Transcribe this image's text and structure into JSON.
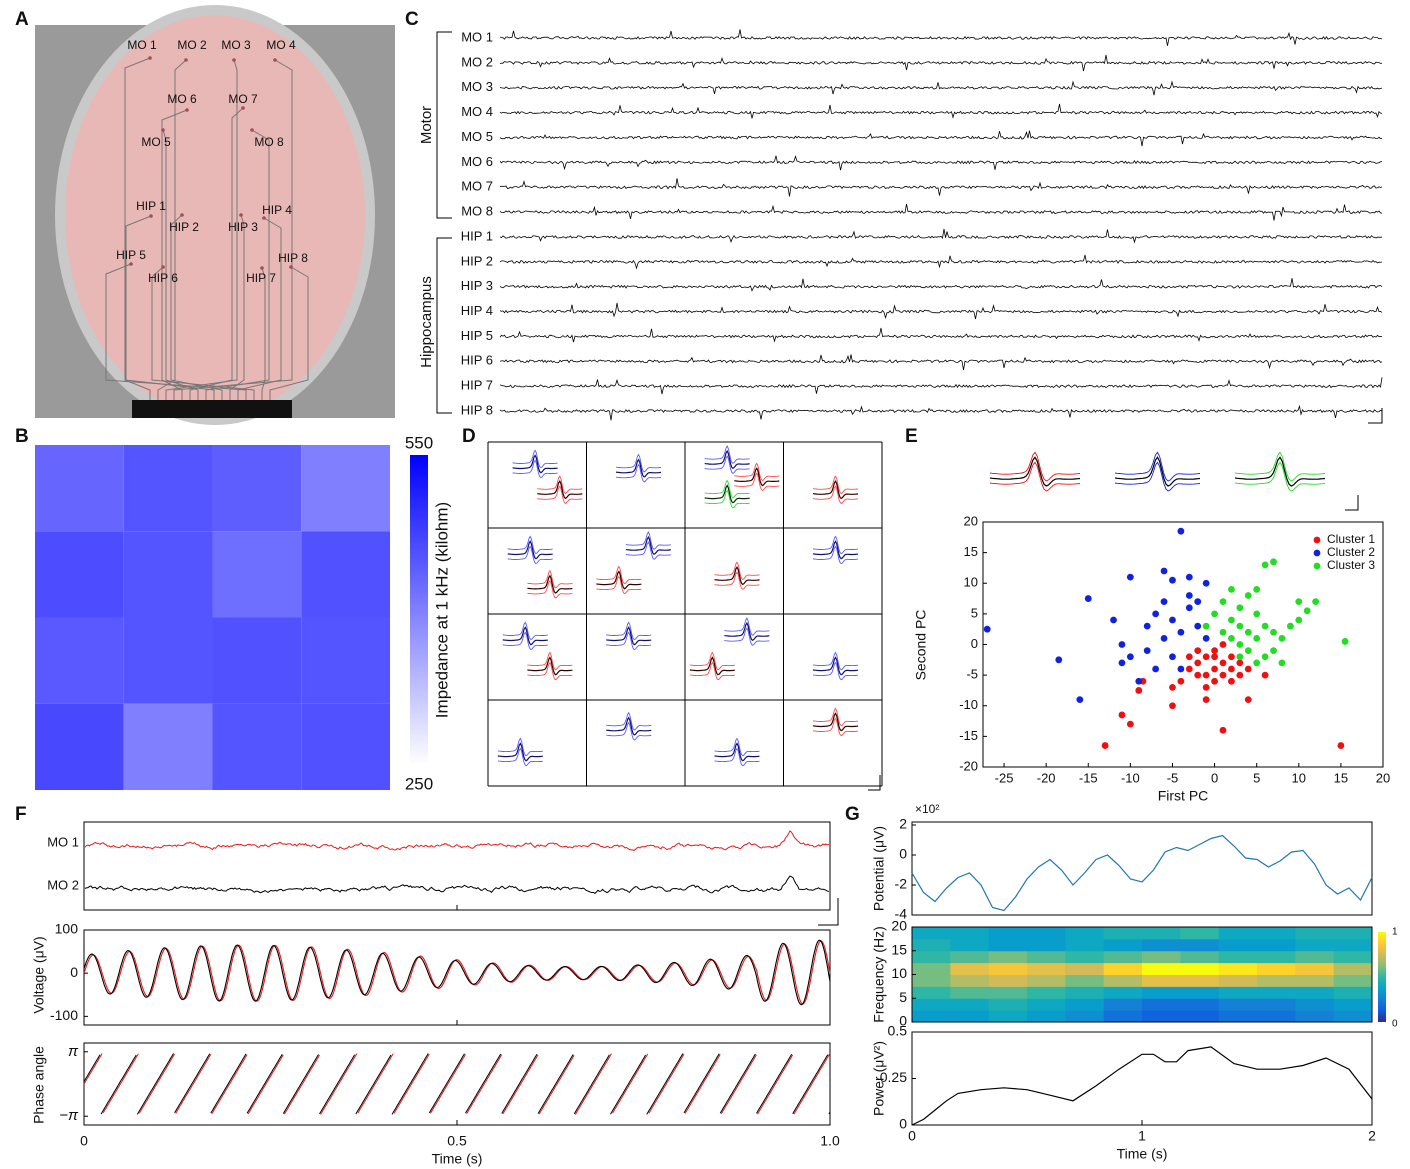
{
  "panel_labels": [
    "A",
    "B",
    "C",
    "D",
    "E",
    "F",
    "G"
  ],
  "electrodes": [
    "MO 1",
    "MO 2",
    "MO 3",
    "MO 4",
    "MO 6",
    "MO 7",
    "MO 5",
    "MO 8",
    "HIP 1",
    "HIP 2",
    "HIP 3",
    "HIP 4",
    "HIP 5",
    "HIP 6",
    "HIP 7",
    "HIP 8"
  ],
  "recordings": {
    "groups": [
      "Motor",
      "Hippocampus"
    ],
    "channels": [
      "MO 1",
      "MO 2",
      "MO 3",
      "MO 4",
      "MO 5",
      "MO 6",
      "MO 7",
      "MO 8",
      "HIP 1",
      "HIP 2",
      "HIP 3",
      "HIP 4",
      "HIP 5",
      "HIP 6",
      "HIP 7",
      "HIP 8"
    ]
  },
  "chart_data": [
    {
      "type": "heatmap",
      "values": [
        [
          430,
          450,
          440,
          400
        ],
        [
          460,
          450,
          420,
          455
        ],
        [
          445,
          450,
          455,
          450
        ],
        [
          465,
          400,
          450,
          455
        ]
      ],
      "zlim": [
        250,
        550
      ],
      "zticks": [
        250,
        550
      ],
      "colors": [
        "#ffffff",
        "#0000ff"
      ],
      "colorbar_label": "Impedance at 1 kHz (kilohm)"
    },
    {
      "type": "scatter",
      "xlabel": "First PC",
      "ylabel": "Second PC",
      "xlim": [
        -27.5,
        20
      ],
      "ylim": [
        -20,
        20
      ],
      "xticks": [
        -25,
        -20,
        -15,
        -10,
        -5,
        0,
        5,
        10,
        15,
        20
      ],
      "yticks": [
        -20,
        -15,
        -10,
        -5,
        0,
        5,
        10,
        15,
        20
      ],
      "series": [
        {
          "name": "Cluster 1",
          "color": "#ee1111",
          "x": [
            -13,
            15,
            -10,
            -11,
            1,
            -5,
            -8.5,
            -9,
            -5,
            -1,
            4,
            6,
            0,
            -1,
            1,
            2,
            -2,
            0,
            1,
            -1,
            -3,
            -2,
            3,
            2,
            -4,
            0,
            1,
            -3,
            2,
            -1,
            3,
            4,
            -2,
            0
          ],
          "values": [
            -16.5,
            -16.5,
            -13,
            -11.5,
            -14,
            -10,
            -6,
            -7.5,
            -7,
            -9,
            -9,
            -5,
            -1,
            -2,
            -3,
            -2,
            -3,
            -4,
            -5,
            -5,
            -4,
            -1,
            -3,
            -6,
            -6,
            -2,
            0,
            -2,
            -4,
            -7,
            -5,
            -4,
            -5,
            -6
          ]
        },
        {
          "name": "Cluster 2",
          "color": "#1122dd",
          "x": [
            -27,
            -18.5,
            -16,
            -15,
            -4,
            -10,
            -6,
            -5,
            -3,
            -1,
            -12,
            -11,
            -10,
            -9,
            -8,
            -7,
            -6,
            -5,
            -4,
            -3,
            -2,
            -1,
            -6,
            -8,
            -3,
            -2,
            -5,
            -7,
            -11,
            -4
          ],
          "values": [
            2.5,
            -2.5,
            -9,
            7.5,
            18.5,
            11,
            12,
            10.5,
            11,
            10,
            4,
            0,
            -2,
            -6,
            3,
            5,
            7,
            4,
            2,
            6,
            3,
            1,
            1,
            -1,
            8,
            7,
            -2,
            -4,
            -3,
            -4
          ]
        },
        {
          "name": "Cluster 3",
          "color": "#22dd22",
          "x": [
            6,
            7,
            15.5,
            12,
            10,
            11,
            9,
            10,
            8,
            7,
            5,
            4,
            3,
            2,
            1,
            2,
            3,
            4,
            5,
            6,
            7,
            3,
            4,
            6,
            0,
            1,
            -1,
            2,
            5,
            8,
            3,
            5
          ],
          "values": [
            13,
            13.5,
            0.5,
            7,
            7,
            5.5,
            3,
            4,
            1,
            -1,
            5,
            8,
            6,
            4,
            2,
            1,
            0,
            2,
            1,
            3,
            2,
            3,
            -1,
            -2,
            5,
            7,
            3,
            9,
            9,
            -3,
            -2,
            -3
          ]
        }
      ]
    },
    {
      "type": "oscillation",
      "channels": [
        "MO 1",
        "MO 2"
      ],
      "colors": [
        "#e8191c",
        "#000000"
      ],
      "ylabel": "Voltage (μV)",
      "ylim": [
        -120,
        100
      ],
      "yticks": [
        -100,
        0,
        100
      ],
      "phase_ylabel": "Phase angle",
      "phase_ylim": [
        -4,
        4
      ],
      "phase_yticks": [
        {
          "value": -3.14159,
          "label": "−π"
        },
        {
          "value": 3.14159,
          "label": "π"
        }
      ],
      "xlabel": "Time (s)",
      "xlim": [
        0,
        1
      ],
      "xticks": [
        0,
        0.5,
        {
          "value": 1,
          "label": "1.0"
        }
      ]
    },
    {
      "type": "line",
      "ylabel": "Potential (μV)",
      "scale_label": "×10²",
      "xlim": [
        0,
        2
      ],
      "ylim": [
        -4,
        2.2
      ],
      "yticks": [
        -4,
        -2,
        0,
        2
      ],
      "x": [
        0,
        0.05,
        0.1,
        0.15,
        0.2,
        0.25,
        0.3,
        0.35,
        0.4,
        0.45,
        0.5,
        0.55,
        0.6,
        0.65,
        0.7,
        0.75,
        0.8,
        0.85,
        0.9,
        0.95,
        1,
        1.05,
        1.1,
        1.15,
        1.2,
        1.25,
        1.3,
        1.35,
        1.4,
        1.45,
        1.5,
        1.55,
        1.6,
        1.65,
        1.7,
        1.75,
        1.8,
        1.85,
        1.9,
        1.95,
        2
      ],
      "series": [
        {
          "color": "#1f77b4",
          "values": [
            -1.2,
            -2.5,
            -3.1,
            -2.2,
            -1.5,
            -1.2,
            -2.0,
            -3.5,
            -3.7,
            -2.8,
            -1.6,
            -0.8,
            -0.3,
            -1.0,
            -2.0,
            -1.2,
            -0.3,
            0.0,
            -0.7,
            -1.6,
            -1.8,
            -1.0,
            0.2,
            0.5,
            0.3,
            0.7,
            1.1,
            1.3,
            0.6,
            -0.2,
            -0.3,
            -0.8,
            -0.4,
            0.2,
            0.3,
            -0.6,
            -2.0,
            -2.6,
            -2.2,
            -3.0,
            -1.5
          ]
        }
      ]
    },
    {
      "type": "heatmap",
      "ylabel": "Frequency (Hz)",
      "xlim": [
        0,
        2
      ],
      "ylim": [
        0,
        20
      ],
      "yticks": [
        0,
        5,
        10,
        15,
        20
      ],
      "zlim": [
        0,
        1
      ],
      "zticks": [
        0,
        1
      ],
      "colors": [
        "#352a87",
        "#0f5cdd",
        "#1481d6",
        "#06a4ca",
        "#2eb7a4",
        "#87bf77",
        "#d1bb59",
        "#fec832",
        "#f9fb0e"
      ],
      "values": [
        [
          0.35,
          0.35,
          0.4,
          0.35,
          0.3,
          0.2,
          0.15,
          0.15,
          0.2,
          0.2,
          0.25,
          0.3
        ],
        [
          0.4,
          0.4,
          0.45,
          0.4,
          0.35,
          0.25,
          0.2,
          0.2,
          0.25,
          0.25,
          0.3,
          0.35
        ],
        [
          0.5,
          0.55,
          0.55,
          0.5,
          0.45,
          0.4,
          0.35,
          0.35,
          0.4,
          0.4,
          0.4,
          0.45
        ],
        [
          0.6,
          0.7,
          0.75,
          0.7,
          0.6,
          0.7,
          0.8,
          0.8,
          0.75,
          0.7,
          0.7,
          0.6
        ],
        [
          0.6,
          0.8,
          0.85,
          0.8,
          0.75,
          0.9,
          1,
          1,
          0.95,
          0.9,
          0.85,
          0.7
        ],
        [
          0.5,
          0.55,
          0.6,
          0.55,
          0.5,
          0.55,
          0.6,
          0.55,
          0.5,
          0.5,
          0.55,
          0.5
        ],
        [
          0.45,
          0.4,
          0.35,
          0.35,
          0.4,
          0.35,
          0.3,
          0.3,
          0.35,
          0.35,
          0.4,
          0.4
        ],
        [
          0.4,
          0.4,
          0.35,
          0.35,
          0.4,
          0.45,
          0.45,
          0.5,
          0.4,
          0.4,
          0.45,
          0.45
        ]
      ]
    },
    {
      "type": "line",
      "ylabel": "Power (μV²)",
      "xlabel": "Time (s)",
      "xlim": [
        0,
        2
      ],
      "ylim": [
        0,
        0.5
      ],
      "yticks": [
        0,
        0.25,
        0.5
      ],
      "xticks": [
        0,
        1,
        2
      ],
      "x": [
        0,
        0.05,
        0.1,
        0.15,
        0.2,
        0.3,
        0.4,
        0.5,
        0.6,
        0.7,
        0.8,
        0.9,
        1,
        1.05,
        1.1,
        1.15,
        1.2,
        1.3,
        1.4,
        1.5,
        1.6,
        1.7,
        1.8,
        1.9,
        2
      ],
      "series": [
        {
          "color": "#000000",
          "values": [
            0,
            0.03,
            0.08,
            0.13,
            0.17,
            0.19,
            0.2,
            0.19,
            0.16,
            0.13,
            0.21,
            0.3,
            0.38,
            0.38,
            0.34,
            0.34,
            0.4,
            0.42,
            0.33,
            0.3,
            0.3,
            0.32,
            0.36,
            0.3,
            0.14
          ]
        }
      ]
    }
  ]
}
